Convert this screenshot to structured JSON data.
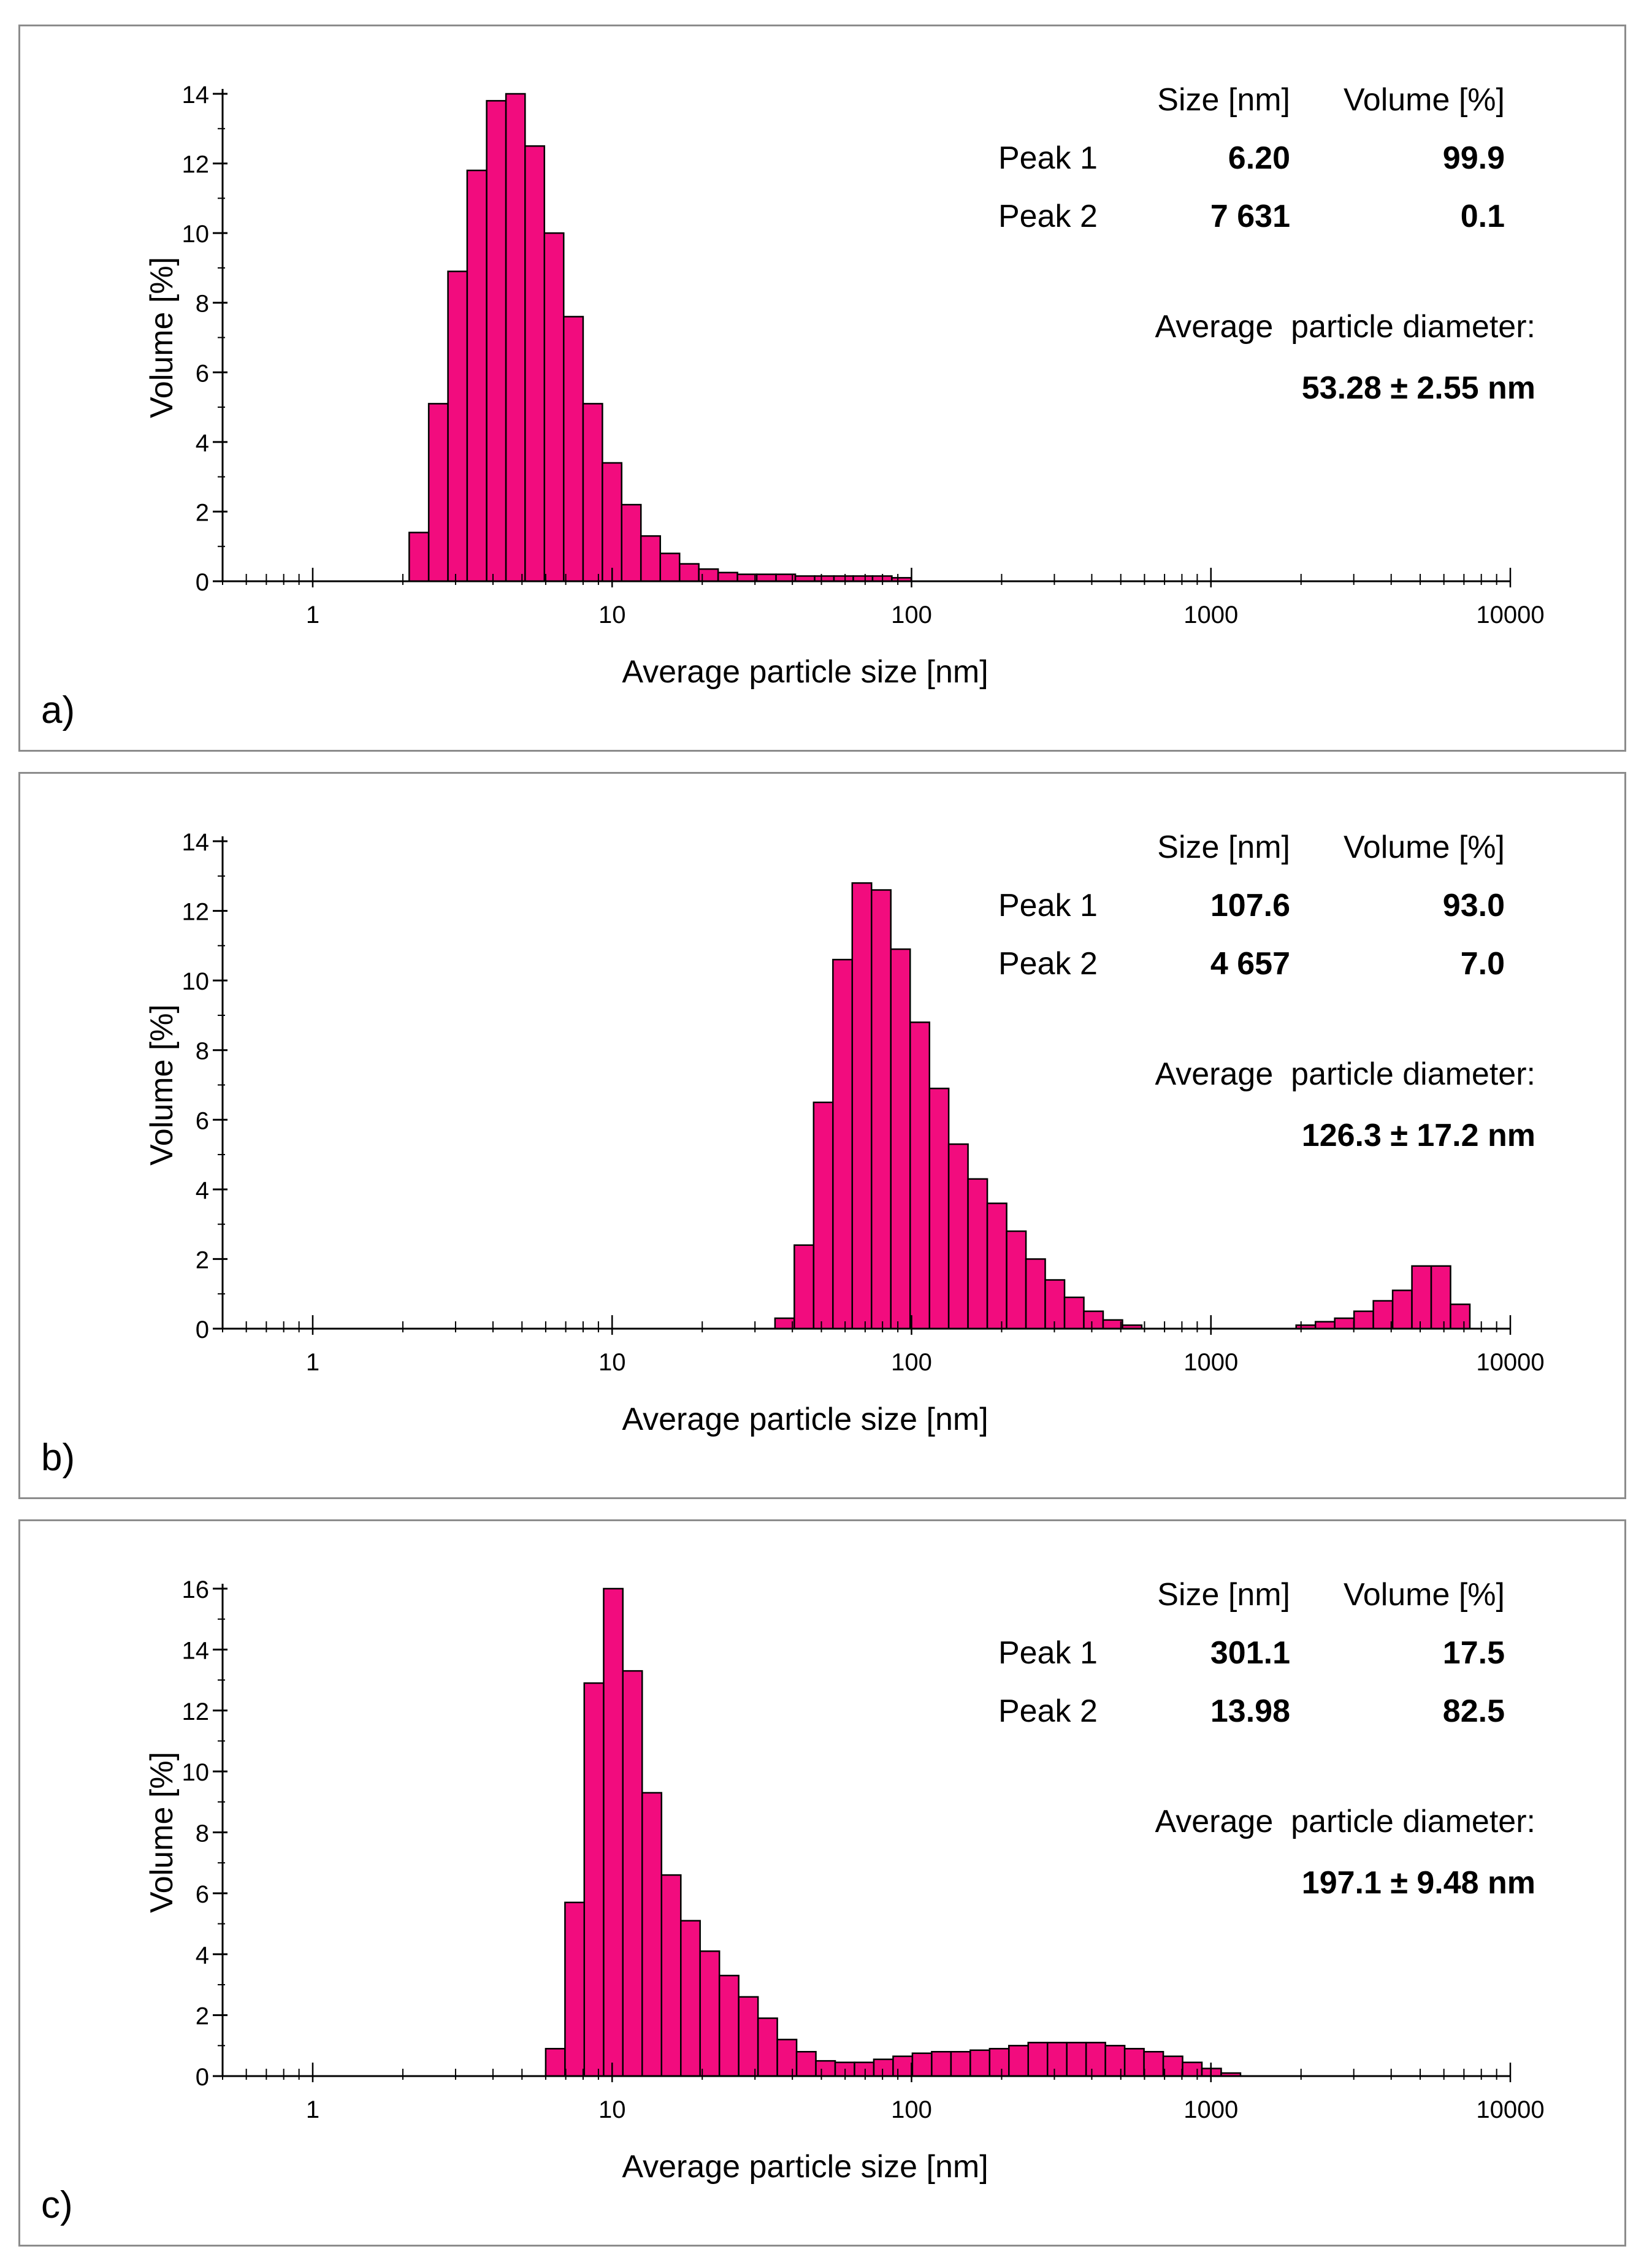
{
  "colors": {
    "bar_fill": "#f20c7e",
    "bar_stroke": "#000000",
    "frame": "#8c8c8c"
  },
  "chart_data": [
    {
      "type": "bar",
      "panel_label": "a)",
      "xlabel": "Average particle size [nm]",
      "ylabel": "Volume [%]",
      "xscale": "log",
      "xlim": [
        0.5,
        10000
      ],
      "ylim": [
        0,
        14
      ],
      "y_ticks": [
        0,
        2,
        4,
        6,
        8,
        10,
        12,
        14
      ],
      "x_ticks": [
        1,
        10,
        100,
        1000,
        10000
      ],
      "x_tick_labels": [
        "1",
        "10",
        "100",
        "1000",
        "10000"
      ],
      "bin_edges_nm": [
        2.1,
        2.44,
        2.83,
        3.28,
        3.81,
        4.42,
        5.12,
        5.94,
        6.89,
        8.0,
        9.28,
        10.76,
        12.48,
        14.48,
        16.8,
        19.48,
        22.6,
        26.22,
        30.41,
        35.28,
        40.93,
        47.48,
        55.07,
        63.89,
        74.11,
        85.97,
        99.73
      ],
      "values": [
        1.4,
        5.1,
        8.9,
        11.8,
        13.8,
        14.0,
        12.5,
        10.0,
        7.6,
        5.1,
        3.4,
        2.2,
        1.3,
        0.8,
        0.5,
        0.35,
        0.25,
        0.2,
        0.2,
        0.2,
        0.15,
        0.15,
        0.15,
        0.15,
        0.15,
        0.1
      ],
      "table": {
        "col_size": "Size [nm]",
        "col_volume": "Volume [%]",
        "rows": [
          {
            "label": "Peak 1",
            "size": "6.20",
            "volume": "99.9"
          },
          {
            "label": "Peak 2",
            "size": "7 631",
            "volume": "0.1"
          }
        ]
      },
      "average_label": "Average  particle diameter:",
      "average_value": "53.28 ± 2.55 nm"
    },
    {
      "type": "bar",
      "panel_label": "b)",
      "xlabel": "Average particle size [nm]",
      "ylabel": "Volume [%]",
      "xscale": "log",
      "xlim": [
        0.5,
        10000
      ],
      "ylim": [
        0,
        14
      ],
      "y_ticks": [
        0,
        2,
        4,
        6,
        8,
        10,
        12,
        14
      ],
      "x_ticks": [
        1,
        10,
        100,
        1000,
        10000
      ],
      "x_tick_labels": [
        "1",
        "10",
        "100",
        "1000",
        "10000"
      ],
      "bin_edges_nm": [
        35.0,
        40.6,
        47.1,
        54.64,
        63.38,
        73.52,
        85.29,
        98.94,
        114.8,
        133.1,
        154.4,
        179.1,
        207.8,
        241.1,
        279.6,
        324.4,
        376.3,
        436.5,
        506.4,
        587.4,
        681.4,
        790.4,
        916.9,
        1063.6,
        1233.8,
        1431.2,
        1660.2,
        1925.9,
        2234.1,
        2591.5,
        3006.2,
        3487.2,
        4045.1,
        4692.3,
        5443.1,
        6314.0,
        7324.3
      ],
      "values": [
        0.3,
        2.4,
        6.5,
        10.6,
        12.8,
        12.6,
        10.9,
        8.8,
        6.9,
        5.3,
        4.3,
        3.6,
        2.8,
        2.0,
        1.4,
        0.9,
        0.5,
        0.25,
        0.1,
        0.0,
        0.0,
        0.0,
        0.0,
        0.0,
        0.0,
        0.0,
        0.0,
        0.1,
        0.2,
        0.3,
        0.5,
        0.8,
        1.1,
        1.8,
        1.8,
        0.7
      ],
      "table": {
        "col_size": "Size [nm]",
        "col_volume": "Volume [%]",
        "rows": [
          {
            "label": "Peak 1",
            "size": "107.6",
            "volume": "93.0"
          },
          {
            "label": "Peak 2",
            "size": "4 657",
            "volume": "7.0"
          }
        ]
      },
      "average_label": "Average  particle diameter:",
      "average_value": "126.3 ± 17.2 nm"
    },
    {
      "type": "bar",
      "panel_label": "c)",
      "xlabel": "Average particle size [nm]",
      "ylabel": "Volume [%]",
      "xscale": "log",
      "xlim": [
        0.5,
        10000
      ],
      "ylim": [
        0,
        16
      ],
      "y_ticks": [
        0,
        2,
        4,
        6,
        8,
        10,
        12,
        14,
        16
      ],
      "x_ticks": [
        1,
        10,
        100,
        1000,
        10000
      ],
      "x_tick_labels": [
        "1",
        "10",
        "100",
        "1000",
        "10000"
      ],
      "bin_edges_nm": [
        6.0,
        6.96,
        8.07,
        9.37,
        10.86,
        12.6,
        14.62,
        16.96,
        19.67,
        22.82,
        26.47,
        30.71,
        35.62,
        41.32,
        47.93,
        55.6,
        64.5,
        74.82,
        86.79,
        100.68,
        116.79,
        135.48,
        157.15,
        182.3,
        211.46,
        245.3,
        284.55,
        330.08,
        382.89,
        444.15,
        515.22,
        597.65,
        693.28,
        804.2,
        932.88,
        1082.1,
        1255.3
      ],
      "values": [
        0.9,
        5.7,
        12.9,
        16.0,
        13.3,
        9.3,
        6.6,
        5.1,
        4.1,
        3.3,
        2.6,
        1.9,
        1.2,
        0.8,
        0.5,
        0.45,
        0.45,
        0.55,
        0.65,
        0.75,
        0.8,
        0.8,
        0.85,
        0.9,
        1.0,
        1.1,
        1.1,
        1.1,
        1.1,
        1.0,
        0.9,
        0.8,
        0.65,
        0.45,
        0.25,
        0.1
      ],
      "table": {
        "col_size": "Size [nm]",
        "col_volume": "Volume [%]",
        "rows": [
          {
            "label": "Peak 1",
            "size": "301.1",
            "volume": "17.5"
          },
          {
            "label": "Peak 2",
            "size": "13.98",
            "volume": "82.5"
          }
        ]
      },
      "average_label": "Average  particle diameter:",
      "average_value": "197.1 ± 9.48 nm"
    }
  ]
}
